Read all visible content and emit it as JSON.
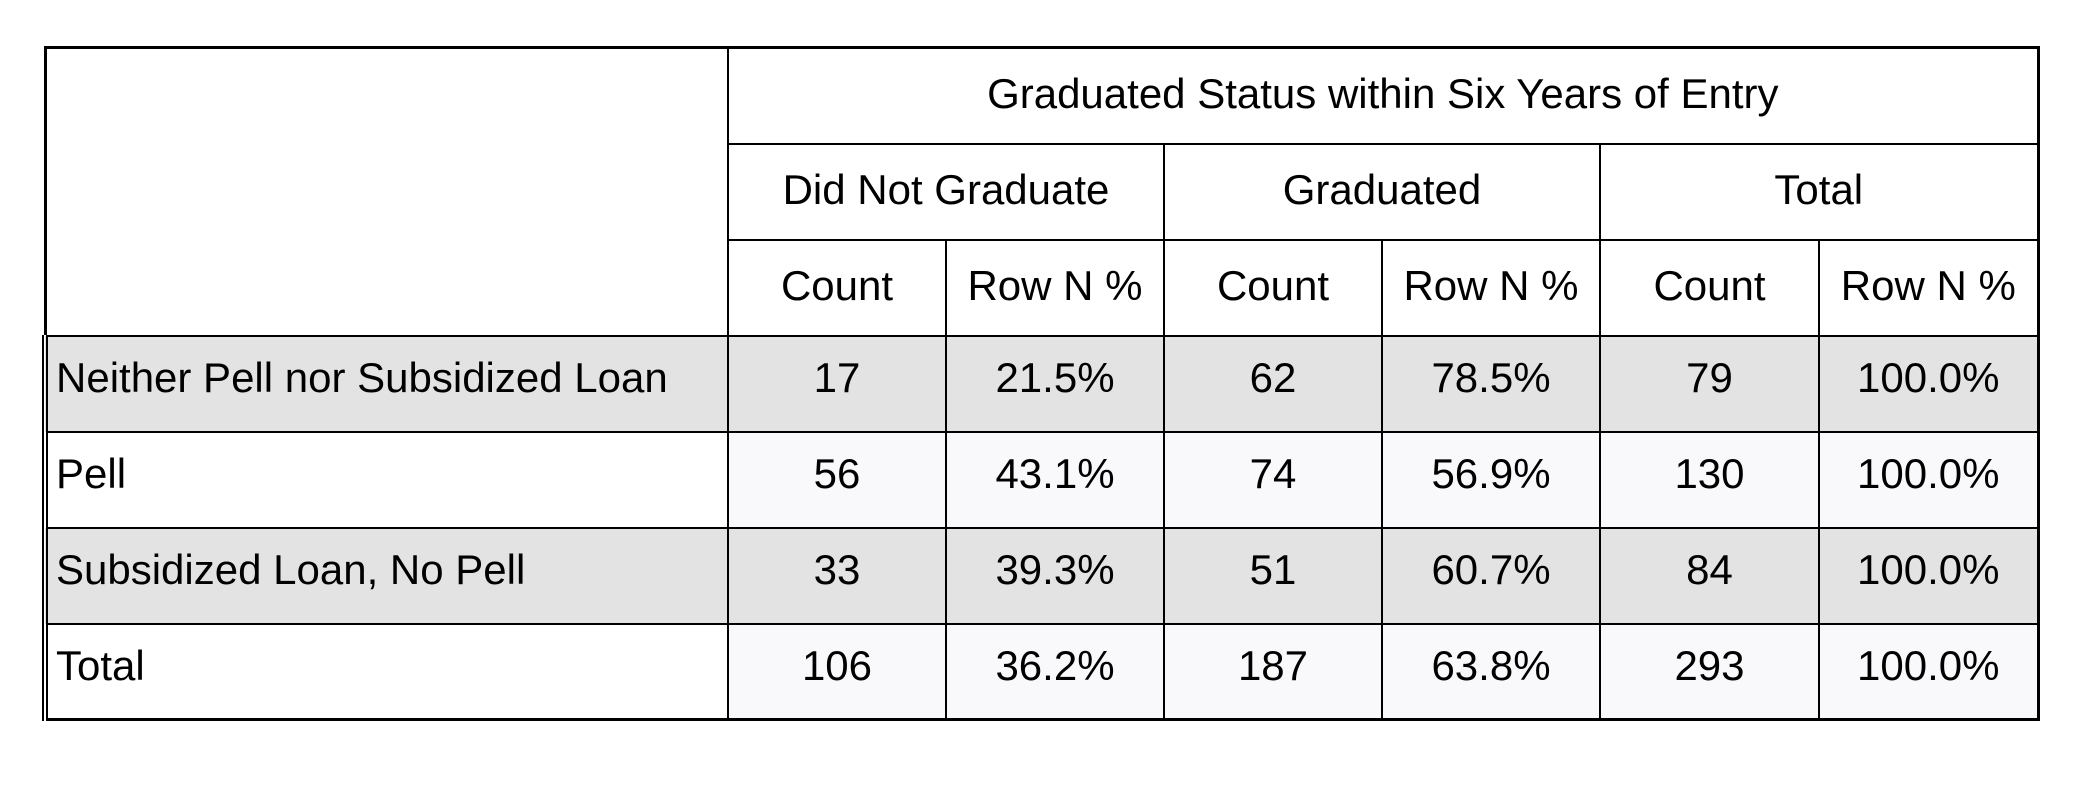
{
  "table": {
    "title": "Graduated Status within Six Years of Entry",
    "groups": [
      "Did Not Graduate",
      "Graduated",
      "Total"
    ],
    "subheaders": [
      "Count",
      "Row N %",
      "Count",
      "Row N %",
      "Count",
      "Row N %"
    ],
    "rows": [
      {
        "label": "Neither Pell nor Subsidized Loan",
        "cells": [
          "17",
          "21.5%",
          "62",
          "78.5%",
          "79",
          "100.0%"
        ]
      },
      {
        "label": "Pell",
        "cells": [
          "56",
          "43.1%",
          "74",
          "56.9%",
          "130",
          "100.0%"
        ]
      },
      {
        "label": "Subsidized Loan, No Pell",
        "cells": [
          "33",
          "39.3%",
          "51",
          "60.7%",
          "84",
          "100.0%"
        ]
      },
      {
        "label": "Total",
        "cells": [
          "106",
          "36.2%",
          "187",
          "63.8%",
          "293",
          "100.0%"
        ]
      }
    ]
  }
}
